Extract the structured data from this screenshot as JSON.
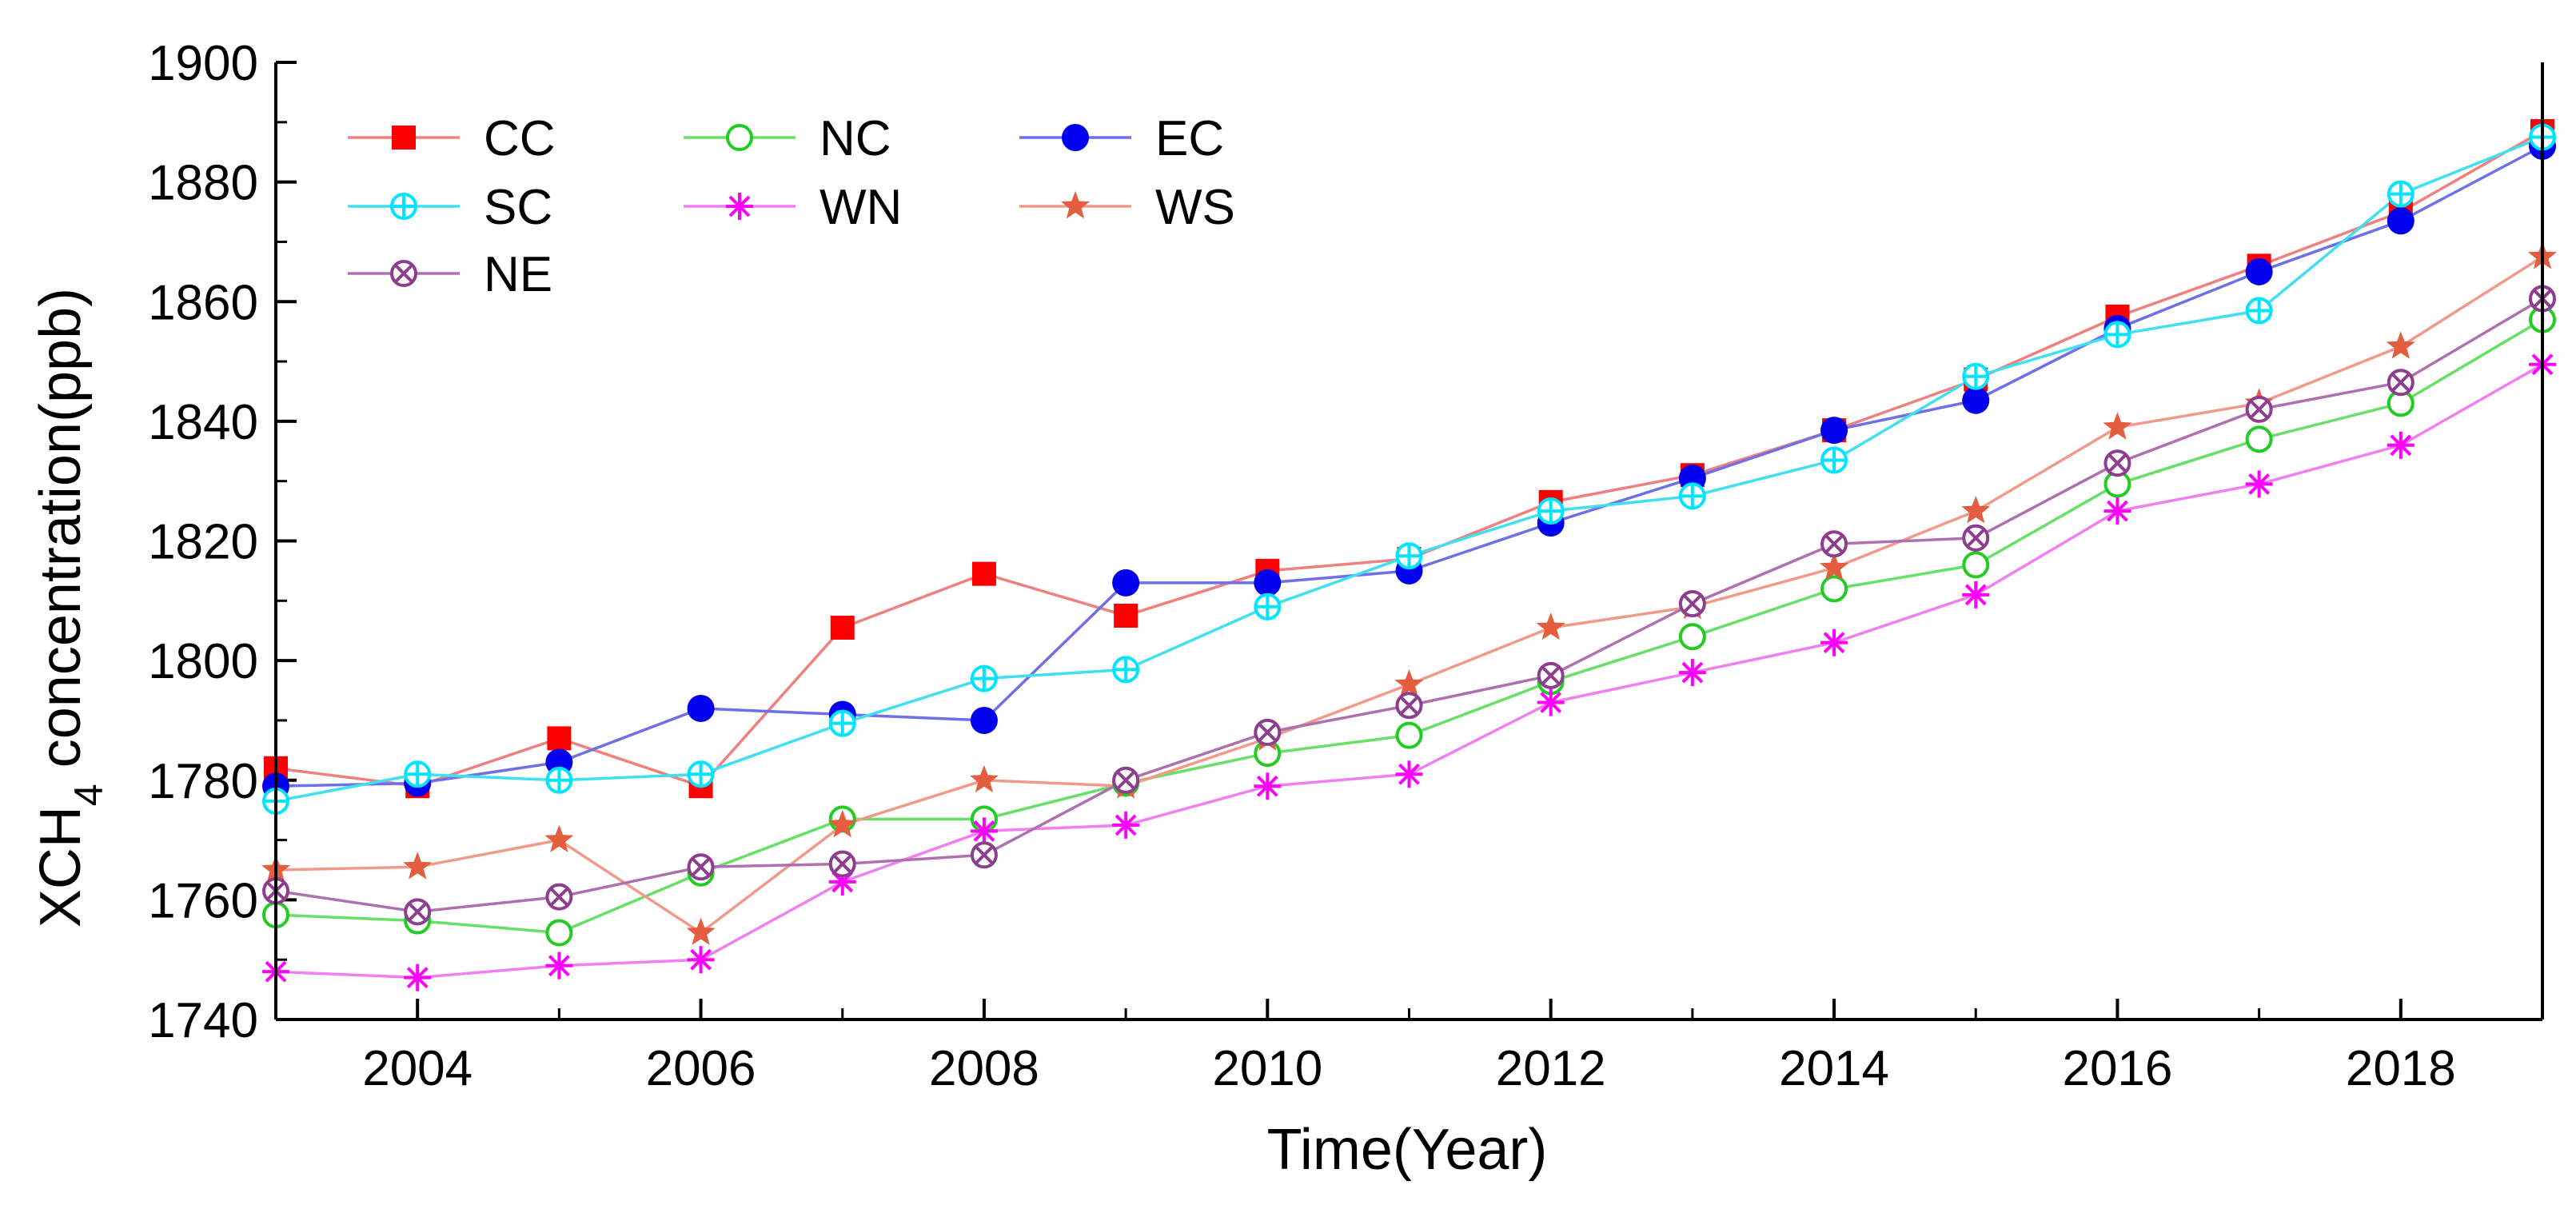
{
  "chart_data": {
    "type": "line",
    "title": "",
    "xlabel": "Time(Year)",
    "ylabel_main": "XCH",
    "ylabel_sub": "4",
    "ylabel_rest": " concentration(ppb)",
    "xlim": [
      2003,
      2019
    ],
    "ylim": [
      1740,
      1900
    ],
    "xticks": [
      2004,
      2006,
      2008,
      2010,
      2012,
      2014,
      2016,
      2018
    ],
    "yticks": [
      1740,
      1760,
      1780,
      1800,
      1820,
      1840,
      1860,
      1880,
      1900
    ],
    "x": [
      2003,
      2004,
      2005,
      2006,
      2007,
      2008,
      2009,
      2010,
      2011,
      2012,
      2013,
      2014,
      2015,
      2016,
      2017,
      2018,
      2019
    ],
    "legend_position": "top-left",
    "series": [
      {
        "name": "CC",
        "line_color": "#f08080",
        "marker_color": "#ff0000",
        "marker": "square-filled",
        "values": [
          1782,
          1779,
          1787,
          1779,
          1805.5,
          1814.5,
          1807.5,
          1815,
          1817,
          1826.5,
          1831,
          1838.5,
          1847,
          1857.5,
          1866,
          1875,
          1888.5
        ]
      },
      {
        "name": "NC",
        "line_color": "#66e066",
        "marker_color": "#22cc22",
        "marker": "circle-open",
        "values": [
          1757.5,
          1756.5,
          1754.5,
          1764.5,
          1773.5,
          1773.5,
          1779.5,
          1784.5,
          1787.5,
          1796.5,
          1804,
          1812,
          1816,
          1829.5,
          1837,
          1843,
          1857
        ]
      },
      {
        "name": "EC",
        "line_color": "#6f6fe8",
        "marker_color": "#0000ee",
        "marker": "circle-filled",
        "values": [
          1779,
          1779.5,
          1783,
          1792,
          1791,
          1790,
          1813,
          1813,
          1815,
          1823,
          1830.5,
          1838.5,
          1843.5,
          1855.5,
          1865,
          1873.5,
          1886
        ]
      },
      {
        "name": "SC",
        "line_color": "#40e0f0",
        "marker_color": "#00e5ff",
        "marker": "circle-crosshair",
        "values": [
          1776.5,
          1781,
          1780,
          1781,
          1789.5,
          1797,
          1798.5,
          1809,
          1817.5,
          1825,
          1827.5,
          1833.5,
          1847.5,
          1854.5,
          1858.5,
          1878,
          1887.5
        ]
      },
      {
        "name": "WN",
        "line_color": "#f080f0",
        "marker_color": "#ff00ff",
        "marker": "asterisk",
        "values": [
          1748,
          1747,
          1749,
          1750,
          1763,
          1771.5,
          1772.5,
          1779,
          1781,
          1793,
          1798,
          1803,
          1811,
          1825,
          1829.5,
          1836,
          1849.5
        ]
      },
      {
        "name": "WS",
        "line_color": "#f09a8a",
        "marker_color": "#e35d3e",
        "marker": "star-filled",
        "values": [
          1765,
          1765.5,
          1770,
          1754.5,
          1772.5,
          1780,
          1779,
          1787,
          1796,
          1805.5,
          1809,
          1815.5,
          1825,
          1839,
          1843,
          1852.5,
          1867.5
        ]
      },
      {
        "name": "NE",
        "line_color": "#b070b0",
        "marker_color": "#8e3e8e",
        "marker": "circle-x",
        "values": [
          1761.5,
          1758,
          1760.5,
          1765.5,
          1766,
          1767.5,
          1780,
          1788,
          1792.5,
          1797.5,
          1809.5,
          1819.5,
          1820.5,
          1833,
          1842,
          1846.5,
          1860.5
        ]
      }
    ]
  }
}
